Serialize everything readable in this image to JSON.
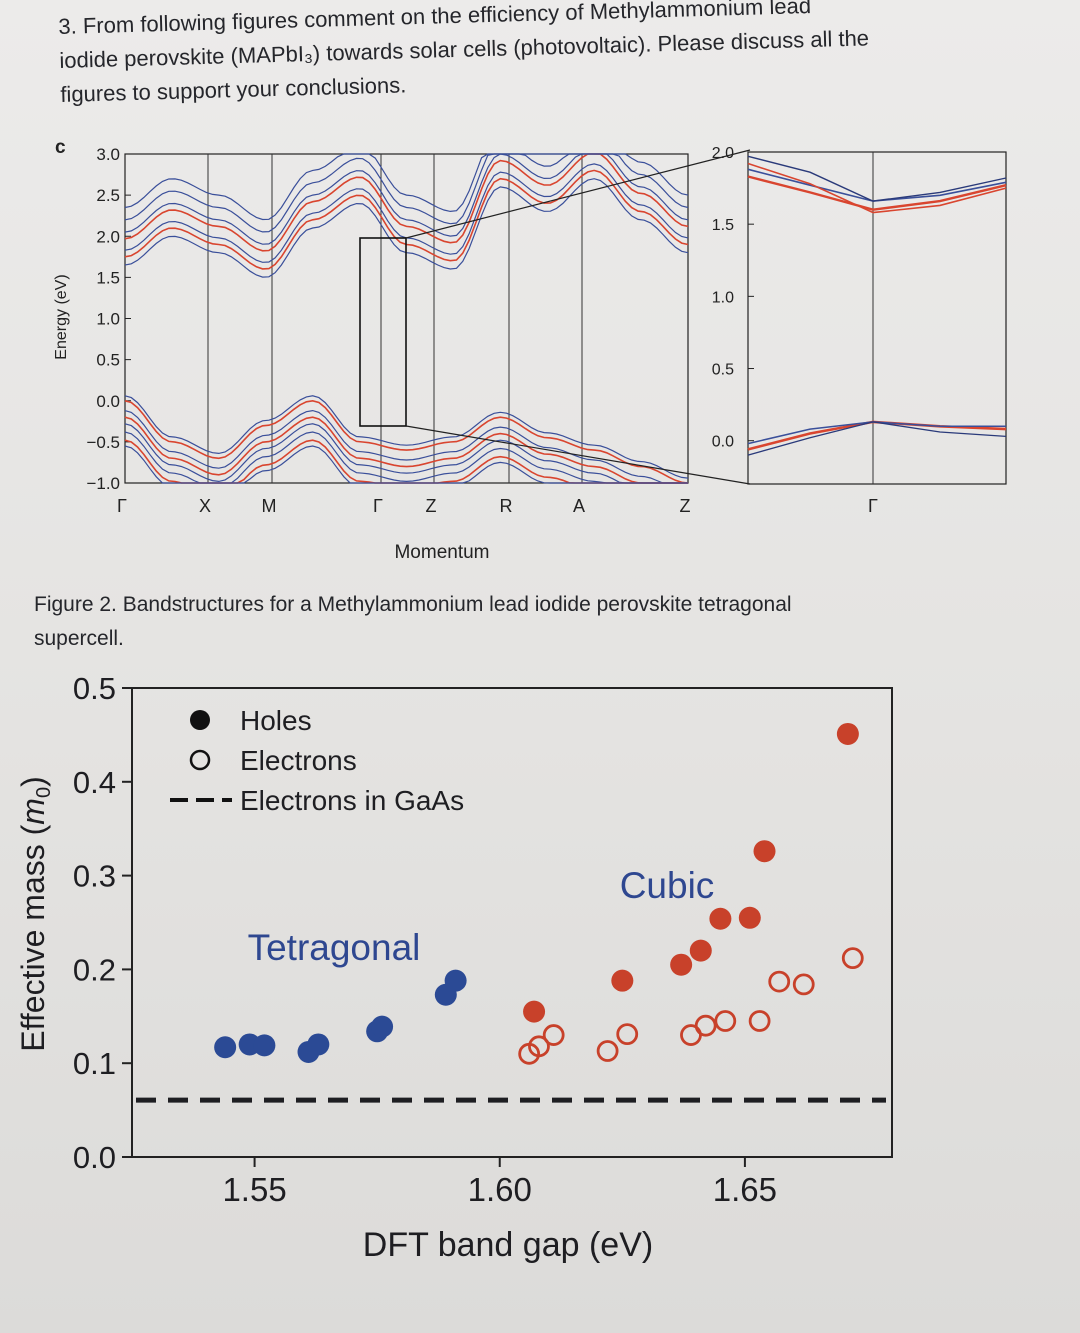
{
  "question": {
    "line1": "3. From following figures comment on the efficiency of Methylammonium lead",
    "line2": "iodide perovskite (MAPbI₃) towards solar cells (photovoltaic). Please discuss all the",
    "line3": "figures to support your conclusions."
  },
  "figure2": {
    "caption_line1": "Figure 2. Bandstructures for a Methylammonium lead iodide perovskite tetragonal",
    "caption_line2": "supercell."
  },
  "colors": {
    "red": "#d9452f",
    "blue": "#3a4f9a",
    "navy": "#2a3a7a",
    "axis": "#222"
  },
  "chart_data": [
    {
      "type": "line",
      "panel_label": "c",
      "title": "",
      "xlabel": "Momentum",
      "ylabel": "Energy (eV)",
      "ylim": [
        -1.0,
        3.0
      ],
      "yticks": [
        "3.0",
        "2.5",
        "2.0",
        "1.5",
        "1.0",
        "0.5",
        "0.0",
        "−0.5",
        "−1.0"
      ],
      "xticks": [
        "Γ",
        "X",
        "M",
        "Γ",
        "Z",
        "R",
        "A",
        "Z"
      ],
      "series": [
        {
          "name": "conduction band 1 (red)",
          "values": [
            1.75,
            2.1,
            1.9,
            1.6,
            2.2,
            2.5,
            1.9,
            1.7,
            2.7,
            2.4,
            2.8,
            2.3,
            1.9
          ]
        },
        {
          "name": "valence band 1 (red)",
          "values": [
            0.0,
            -0.5,
            -0.7,
            -0.3,
            0.0,
            -0.5,
            -0.6,
            -0.5,
            -0.2,
            -0.45,
            -0.6,
            -0.8,
            -1.0
          ]
        }
      ],
      "inset": {
        "ylim": [
          -0.3,
          2.0
        ],
        "yticks": [
          "2.0",
          "1.5",
          "1.0",
          "0.5",
          "0.0"
        ],
        "xticks": [
          "Γ"
        ],
        "band_gap_point": "Γ"
      }
    },
    {
      "type": "scatter",
      "title": "",
      "xlabel": "DFT band gap (eV)",
      "ylabel": "Effective mass (m0)",
      "xlim": [
        1.525,
        1.68
      ],
      "ylim": [
        0.0,
        0.5
      ],
      "xticks": [
        "1.55",
        "1.60",
        "1.65"
      ],
      "yticks": [
        "0.5",
        "0.4",
        "0.3",
        "0.2",
        "0.1",
        "0.0"
      ],
      "legend": [
        "Holes",
        "Electrons",
        "Electrons in GaAs"
      ],
      "annotations": [
        "Tetragonal",
        "Cubic"
      ],
      "reference_line": {
        "name": "Electrons in GaAs",
        "y": 0.067
      },
      "series": [
        {
          "name": "Holes (Tetragonal)",
          "marker": "filled",
          "color": "blue",
          "x": [
            1.544,
            1.549,
            1.552,
            1.561,
            1.563,
            1.575,
            1.576,
            1.589,
            1.591
          ],
          "y": [
            0.117,
            0.12,
            0.119,
            0.112,
            0.12,
            0.134,
            0.139,
            0.173,
            0.188
          ]
        },
        {
          "name": "Holes (Cubic)",
          "marker": "filled",
          "color": "red",
          "x": [
            1.607,
            1.625,
            1.637,
            1.641,
            1.645,
            1.651,
            1.654,
            1.671
          ],
          "y": [
            0.155,
            0.188,
            0.205,
            0.22,
            0.254,
            0.255,
            0.326,
            0.451
          ]
        },
        {
          "name": "Electrons (Cubic)",
          "marker": "open",
          "color": "red",
          "x": [
            1.606,
            1.608,
            1.611,
            1.622,
            1.626,
            1.639,
            1.642,
            1.646,
            1.653,
            1.657,
            1.662,
            1.672
          ],
          "y": [
            0.11,
            0.118,
            0.13,
            0.113,
            0.131,
            0.13,
            0.14,
            0.145,
            0.145,
            0.187,
            0.184,
            0.212
          ]
        }
      ]
    }
  ]
}
